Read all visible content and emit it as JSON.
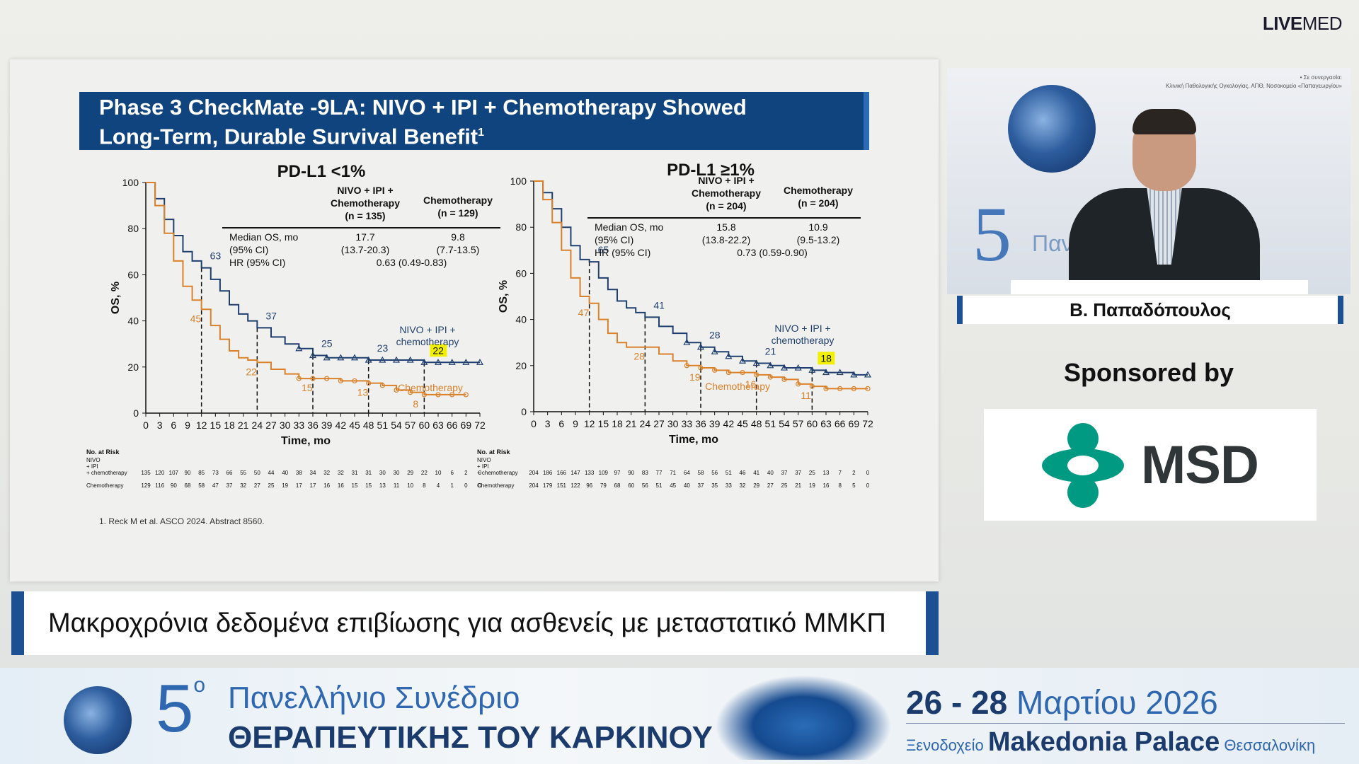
{
  "brand": {
    "bold": "LIVE",
    "light": "MED"
  },
  "slide": {
    "title_line1": "Phase 3 CheckMate -9LA: NIVO + IPI + Chemotherapy Showed",
    "title_line2": "Long-Term, Durable Survival Benefit",
    "title_sup": "1",
    "footnote": "1. Reck M et al. ASCO 2024. Abstract 8560."
  },
  "chart_data": [
    {
      "type": "line",
      "title": "PD-L1 <1%",
      "xlabel": "Time, mo",
      "ylabel": "OS, %",
      "xlim": [
        0,
        72
      ],
      "ylim": [
        0,
        100
      ],
      "x_ticks": [
        0,
        3,
        6,
        9,
        12,
        15,
        18,
        21,
        24,
        27,
        30,
        33,
        36,
        39,
        42,
        45,
        48,
        51,
        54,
        57,
        60,
        63,
        66,
        69,
        72
      ],
      "y_ticks": [
        0,
        20,
        40,
        60,
        80,
        100
      ],
      "table": {
        "col1": "NIVO + IPI +\nChemotherapy\n(n = 135)",
        "col2": "Chemotherapy\n(n = 129)",
        "rows": [
          {
            "label": "Median OS, mo",
            "v1": "17.7",
            "v2": "9.8"
          },
          {
            "label": "(95% CI)",
            "v1": "(13.7-20.3)",
            "v2": "(7.7-13.5)"
          },
          {
            "label": "HR (95% CI)",
            "v1": "0.63 (0.49-0.83)",
            "v2": ""
          }
        ]
      },
      "series": [
        {
          "name": "NIVO + IPI + chemotherapy",
          "color": "#1f3f6e",
          "x": [
            0,
            2,
            4,
            6,
            8,
            10,
            12,
            14,
            16,
            18,
            20,
            22,
            24,
            27,
            30,
            33,
            36,
            39,
            42,
            45,
            48,
            51,
            54,
            57,
            60,
            63,
            66,
            69,
            72
          ],
          "y": [
            100,
            93,
            84,
            77,
            70,
            66,
            63,
            58,
            53,
            47,
            43,
            40,
            37,
            33,
            30,
            28,
            25,
            24,
            24,
            24,
            23,
            23,
            23,
            23,
            22,
            22,
            22,
            22,
            22
          ],
          "labels": [
            {
              "x": 12,
              "y": 63,
              "t": "63"
            },
            {
              "x": 24,
              "y": 37,
              "t": "37"
            },
            {
              "x": 36,
              "y": 25,
              "t": "25"
            },
            {
              "x": 48,
              "y": 23,
              "t": "23"
            },
            {
              "x": 60,
              "y": 22,
              "t": "22"
            }
          ]
        },
        {
          "name": "Chemotherapy",
          "color": "#d9822b",
          "x": [
            0,
            2,
            4,
            6,
            8,
            10,
            12,
            14,
            16,
            18,
            20,
            22,
            24,
            27,
            30,
            33,
            36,
            39,
            42,
            45,
            48,
            51,
            54,
            57,
            60,
            63,
            66,
            69
          ],
          "y": [
            100,
            90,
            78,
            66,
            55,
            49,
            45,
            38,
            32,
            27,
            24,
            23,
            22,
            19,
            17,
            15,
            15,
            15,
            14,
            14,
            13,
            12,
            10,
            9,
            8,
            8,
            8,
            8
          ],
          "labels": [
            {
              "x": 12,
              "y": 45,
              "t": "45"
            },
            {
              "x": 24,
              "y": 22,
              "t": "22"
            },
            {
              "x": 36,
              "y": 15,
              "t": "15"
            },
            {
              "x": 48,
              "y": 13,
              "t": "13"
            },
            {
              "x": 60,
              "y": 8,
              "t": "8"
            }
          ]
        }
      ],
      "legend_top": "NIVO + IPI +\nchemotherapy",
      "legend_bottom": "Chemotherapy",
      "risk": {
        "title": "No. at Risk",
        "label1": "NIVO\n+ IPI\n+ chemotherapy",
        "label2": "Chemotherapy",
        "row1": [
          "135",
          "120",
          "107",
          "90",
          "85",
          "73",
          "66",
          "55",
          "50",
          "44",
          "40",
          "38",
          "34",
          "32",
          "32",
          "31",
          "31",
          "30",
          "30",
          "29",
          "22",
          "10",
          "6",
          "2",
          "0"
        ],
        "row2": [
          "129",
          "116",
          "90",
          "68",
          "58",
          "47",
          "37",
          "32",
          "27",
          "25",
          "19",
          "17",
          "17",
          "16",
          "16",
          "15",
          "15",
          "13",
          "11",
          "10",
          "8",
          "4",
          "1",
          "0",
          "0"
        ]
      }
    },
    {
      "type": "line",
      "title": "PD-L1 ≥1%",
      "xlabel": "Time, mo",
      "ylabel": "OS, %",
      "xlim": [
        0,
        72
      ],
      "ylim": [
        0,
        100
      ],
      "x_ticks": [
        0,
        3,
        6,
        9,
        12,
        15,
        18,
        21,
        24,
        27,
        30,
        33,
        36,
        39,
        42,
        45,
        48,
        51,
        54,
        57,
        60,
        63,
        66,
        69,
        72
      ],
      "y_ticks": [
        0,
        20,
        40,
        60,
        80,
        100
      ],
      "table": {
        "col1": "NIVO + IPI +\nChemotherapy\n(n = 204)",
        "col2": "Chemotherapy\n(n = 204)",
        "rows": [
          {
            "label": "Median OS, mo",
            "v1": "15.8",
            "v2": "10.9"
          },
          {
            "label": "(95% CI)",
            "v1": "(13.8-22.2)",
            "v2": "(9.5-13.2)"
          },
          {
            "label": "HR (95% CI)",
            "v1": "0.73 (0.59-0.90)",
            "v2": ""
          }
        ]
      },
      "series": [
        {
          "name": "NIVO + IPI + chemotherapy",
          "color": "#1f3f6e",
          "x": [
            0,
            2,
            4,
            6,
            8,
            10,
            12,
            14,
            16,
            18,
            20,
            22,
            24,
            27,
            30,
            33,
            36,
            39,
            42,
            45,
            48,
            51,
            54,
            57,
            60,
            63,
            66,
            69,
            72
          ],
          "y": [
            100,
            95,
            88,
            80,
            72,
            66,
            65,
            58,
            53,
            48,
            45,
            43,
            41,
            37,
            34,
            30,
            28,
            26,
            24,
            22,
            21,
            20,
            19,
            19,
            18,
            17,
            17,
            16,
            16
          ],
          "labels": [
            {
              "x": 12,
              "y": 65,
              "t": "65"
            },
            {
              "x": 24,
              "y": 41,
              "t": "41"
            },
            {
              "x": 36,
              "y": 28,
              "t": "28"
            },
            {
              "x": 48,
              "y": 21,
              "t": "21"
            },
            {
              "x": 60,
              "y": 18,
              "t": "18"
            }
          ]
        },
        {
          "name": "Chemotherapy",
          "color": "#d9822b",
          "x": [
            0,
            2,
            4,
            6,
            8,
            10,
            12,
            14,
            16,
            18,
            20,
            22,
            24,
            27,
            30,
            33,
            36,
            39,
            42,
            45,
            48,
            51,
            54,
            57,
            60,
            63,
            66,
            69,
            72
          ],
          "y": [
            100,
            92,
            82,
            70,
            58,
            50,
            47,
            40,
            34,
            30,
            28,
            28,
            28,
            25,
            22,
            20,
            19,
            18,
            17,
            17,
            16,
            15,
            14,
            12,
            11,
            10,
            10,
            10,
            10
          ],
          "labels": [
            {
              "x": 12,
              "y": 47,
              "t": "47"
            },
            {
              "x": 24,
              "y": 28,
              "t": "28"
            },
            {
              "x": 36,
              "y": 19,
              "t": "19"
            },
            {
              "x": 48,
              "y": 16,
              "t": "16"
            },
            {
              "x": 60,
              "y": 11,
              "t": "11"
            }
          ]
        }
      ],
      "legend_top": "NIVO + IPI +\nchemotherapy",
      "legend_bottom": "Chemotherapy",
      "risk": {
        "title": "No. at Risk",
        "label1": "NIVO\n+ IPI\n+ chemotherapy",
        "label2": "Chemotherapy",
        "row1": [
          "204",
          "186",
          "166",
          "147",
          "133",
          "109",
          "97",
          "90",
          "83",
          "77",
          "71",
          "64",
          "58",
          "56",
          "51",
          "46",
          "41",
          "40",
          "37",
          "37",
          "25",
          "13",
          "7",
          "2",
          "0"
        ],
        "row2": [
          "204",
          "179",
          "151",
          "122",
          "96",
          "79",
          "68",
          "60",
          "56",
          "51",
          "45",
          "40",
          "37",
          "35",
          "33",
          "32",
          "29",
          "27",
          "25",
          "21",
          "19",
          "16",
          "8",
          "5",
          "0"
        ]
      }
    }
  ],
  "video": {
    "small_text": "• Σε συνεργασία:\nΚλινική Παθολογικής Ογκολογίας, ΑΠΘ, Νοσοκομείο «Παπαγεωργίου»",
    "five": "5",
    "pan": "Πανε"
  },
  "speaker_name": "Β. Παπαδόπουλος",
  "sponsored_by": "Sponsored by",
  "sponsor_logo_text": "MSD",
  "caption": "Μακροχρόνια δεδομένα επιβίωσης για ασθενείς με μεταστατικό ΜΜΚΠ",
  "footer": {
    "five": "5",
    "five_sup": "ο",
    "line1": "Πανελλήνιο Συνέδριο",
    "line2": "ΘΕΡΑΠΕΥΤΙΚΗΣ ΤΟΥ ΚΑΡΚΙΝΟΥ",
    "date_num": "26 - 28",
    "date_month": "Μαρτίου 2026",
    "venue_pre": "Ξενοδοχείο",
    "venue_name": "Makedonia Palace",
    "venue_city": "Θεσσαλονίκη"
  },
  "colors": {
    "nivo": "#1f3f6e",
    "chemo": "#d9822b",
    "highlight": "#f0f000",
    "accent": "#1d4f93"
  }
}
